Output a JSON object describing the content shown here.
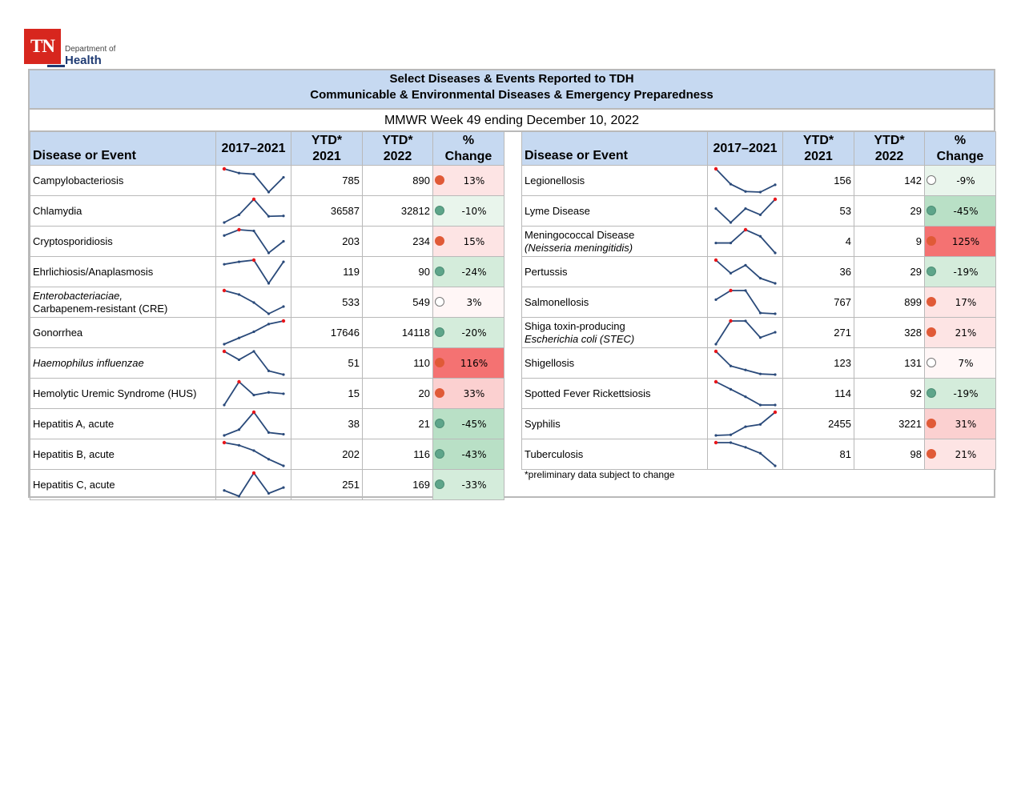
{
  "logo": {
    "mark": "TN",
    "dept": "Department of",
    "name": "Health"
  },
  "title": {
    "line1": "Select Diseases & Events Reported to TDH",
    "line2": "Communicable & Environmental Diseases & Emergency Preparedness",
    "week": "MMWR Week 49 ending December 10, 2022"
  },
  "headers": {
    "disease": "Disease or Event",
    "range": "2017–2021",
    "ytd_label": "YTD*",
    "year1": "2021",
    "year2": "2022",
    "pct_symbol": "%",
    "pct_label": "Change"
  },
  "colors": {
    "header_bg": "#c6d9f1",
    "increase_dot": "#e05a37",
    "decrease_dot": "#5ea58a",
    "neutral_dot": "#ffffff",
    "sparkline": "#2a4a7a",
    "spark_max": "#e8161b"
  },
  "left_rows": [
    {
      "name": "Campylobacteriosis",
      "ytd2021": "785",
      "ytd2022": "890",
      "pct": "13%",
      "trend": "up",
      "change": 13,
      "spark": [
        3,
        2.6,
        2.5,
        0.8,
        2.2
      ]
    },
    {
      "name": "Chlamydia",
      "ytd2021": "36587",
      "ytd2022": "32812",
      "pct": "-10%",
      "trend": "down",
      "change": -10,
      "spark": [
        1,
        2,
        4,
        1.8,
        1.85
      ]
    },
    {
      "name": "Cryptosporidiosis",
      "ytd2021": "203",
      "ytd2022": "234",
      "pct": "15%",
      "trend": "up",
      "change": 15,
      "spark": [
        2.5,
        3,
        2.9,
        1,
        2
      ]
    },
    {
      "name": "Ehrlichiosis/Anaplasmosis",
      "ytd2021": "119",
      "ytd2022": "90",
      "pct": "-24%",
      "trend": "down",
      "change": -24,
      "spark": [
        2.5,
        2.8,
        3,
        0.2,
        2.8
      ]
    },
    {
      "name_line1": "Enterobacteriaciae,",
      "name_line2": "Carbapenem-resistant (CRE)",
      "ytd2021": "533",
      "ytd2022": "549",
      "pct": "3%",
      "trend": "neutral",
      "change": 3,
      "spark": [
        3,
        2.5,
        1.5,
        0.1,
        1
      ]
    },
    {
      "name": "Gonorrhea",
      "ytd2021": "17646",
      "ytd2022": "14118",
      "pct": "-20%",
      "trend": "down",
      "change": -20,
      "spark": [
        1,
        1.8,
        2.6,
        3.6,
        4
      ]
    },
    {
      "name": "Haemophilus influenzae",
      "italic": true,
      "ytd2021": "51",
      "ytd2022": "110",
      "pct": "116%",
      "trend": "up",
      "change": 116,
      "spark": [
        3,
        2.1,
        3,
        0.9,
        0.5
      ]
    },
    {
      "name": "Hemolytic Uremic Syndrome (HUS)",
      "ytd2021": "15",
      "ytd2022": "20",
      "pct": "33%",
      "trend": "up",
      "change": 33,
      "spark": [
        0.5,
        4,
        2,
        2.4,
        2.2
      ]
    },
    {
      "name": "Hepatitis A, acute",
      "ytd2021": "38",
      "ytd2022": "21",
      "pct": "-45%",
      "trend": "down",
      "change": -45,
      "spark": [
        1,
        2,
        5,
        1.5,
        1.2
      ]
    },
    {
      "name": "Hepatitis B, acute",
      "ytd2021": "202",
      "ytd2022": "116",
      "pct": "-43%",
      "trend": "down",
      "change": -43,
      "spark": [
        5,
        4.6,
        3.8,
        2.5,
        1.5
      ]
    },
    {
      "name": "Hepatitis C, acute",
      "ytd2021": "251",
      "ytd2022": "169",
      "pct": "-33%",
      "trend": "down",
      "change": -33,
      "spark": [
        2,
        1,
        5,
        1.5,
        2.5
      ]
    }
  ],
  "right_rows": [
    {
      "name": "Legionellosis",
      "ytd2021": "156",
      "ytd2022": "142",
      "pct": "-9%",
      "trend": "neutral",
      "change": -9,
      "spark": [
        5,
        2.5,
        1.3,
        1.2,
        2.4
      ]
    },
    {
      "name": "Lyme Disease",
      "ytd2021": "53",
      "ytd2022": "29",
      "pct": "-45%",
      "trend": "down",
      "change": -45,
      "spark": [
        2.8,
        1,
        2.8,
        2,
        4
      ]
    },
    {
      "name_line1": "Meningococcal Disease",
      "name_line2": "(Neisseria meningitidis)",
      "ytd2021": "4",
      "ytd2022": "9",
      "pct": "125%",
      "trend": "up",
      "change": 125,
      "spark": [
        2,
        2,
        4,
        3,
        0.5
      ]
    },
    {
      "name": "Pertussis",
      "ytd2021": "36",
      "ytd2022": "29",
      "pct": "-19%",
      "trend": "down",
      "change": -19,
      "spark": [
        5,
        3.2,
        4.3,
        2.5,
        1.8
      ]
    },
    {
      "name": "Salmonellosis",
      "ytd2021": "767",
      "ytd2022": "899",
      "pct": "17%",
      "trend": "up",
      "change": 17,
      "spark": [
        2.2,
        3.3,
        3.3,
        0.6,
        0.5
      ]
    },
    {
      "name_line1": "Shiga toxin-producing",
      "name_line2": "Escherichia coli (STEC)",
      "ytd2021": "271",
      "ytd2022": "328",
      "pct": "21%",
      "trend": "up",
      "change": 21,
      "spark": [
        0.5,
        4,
        4,
        1.5,
        2.3
      ]
    },
    {
      "name": "Shigellosis",
      "ytd2021": "123",
      "ytd2022": "131",
      "pct": "7%",
      "trend": "neutral",
      "change": 7,
      "spark": [
        5,
        2.8,
        2.2,
        1.6,
        1.5
      ]
    },
    {
      "name": "Spotted Fever Rickettsiosis",
      "ytd2021": "114",
      "ytd2022": "92",
      "pct": "-19%",
      "trend": "down",
      "change": -19,
      "spark": [
        5,
        4,
        3,
        1.9,
        1.9
      ]
    },
    {
      "name": "Syphilis",
      "ytd2021": "2455",
      "ytd2022": "3221",
      "pct": "31%",
      "trend": "up",
      "change": 31,
      "spark": [
        1,
        1.1,
        2.5,
        2.9,
        5
      ]
    },
    {
      "name": "Tuberculosis",
      "ytd2021": "81",
      "ytd2022": "98",
      "pct": "21%",
      "trend": "up",
      "change": 21,
      "spark": [
        4,
        4,
        3.3,
        2.4,
        0.5
      ]
    }
  ],
  "footnote": "*preliminary data subject to change"
}
